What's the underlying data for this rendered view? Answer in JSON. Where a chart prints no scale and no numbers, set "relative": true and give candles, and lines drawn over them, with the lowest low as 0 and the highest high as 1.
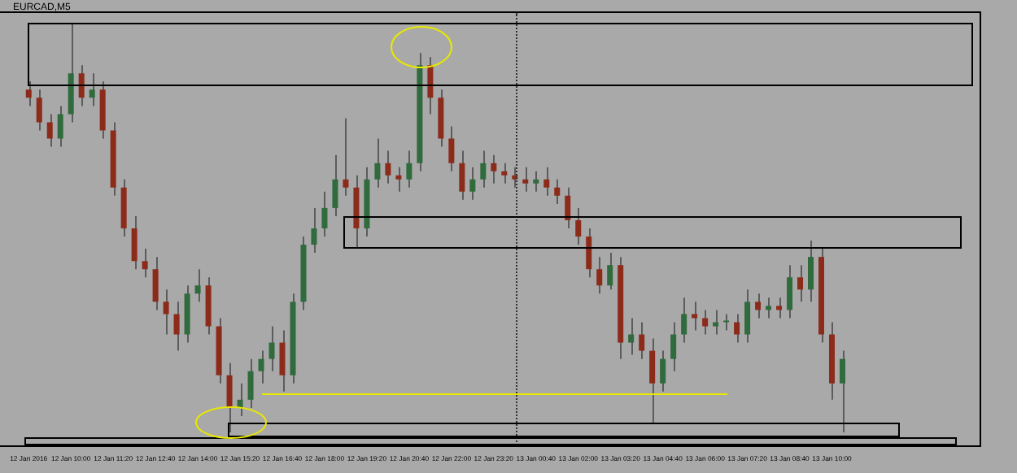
{
  "chart_data": {
    "type": "candlestick",
    "title": "EURCAD,M5",
    "relative": true,
    "tick_labels": "x",
    "categories": [
      "12 Jan 2016",
      null,
      null,
      null,
      "12 Jan 10:00",
      null,
      null,
      null,
      "12 Jan 11:20",
      null,
      null,
      null,
      "12 Jan 12:40",
      null,
      null,
      null,
      "12 Jan 14:00",
      null,
      null,
      null,
      "12 Jan 15:20",
      null,
      null,
      null,
      "12 Jan 16:40",
      null,
      null,
      null,
      "12 Jan 18:00",
      null,
      null,
      null,
      "12 Jan 19:20",
      null,
      null,
      null,
      "12 Jan 20:40",
      null,
      null,
      null,
      "12 Jan 22:00",
      null,
      null,
      null,
      "12 Jan 23:20",
      null,
      null,
      null,
      "13 Jan 00:40",
      null,
      null,
      null,
      "13 Jan 02:00",
      null,
      null,
      null,
      "13 Jan 03:20",
      null,
      null,
      null,
      "13 Jan 04:40",
      null,
      null,
      null,
      "13 Jan 06:00",
      null,
      null,
      null,
      "13 Jan 07:20",
      null,
      null,
      null,
      "13 Jan 08:40",
      null,
      null,
      null,
      "13 Jan 10:00",
      null
    ],
    "ohlc": [
      [
        0.84,
        0.86,
        0.8,
        0.82
      ],
      [
        0.82,
        0.84,
        0.74,
        0.76
      ],
      [
        0.76,
        0.78,
        0.7,
        0.72
      ],
      [
        0.72,
        0.8,
        0.7,
        0.78
      ],
      [
        0.78,
        1.0,
        0.76,
        0.88
      ],
      [
        0.88,
        0.9,
        0.8,
        0.82
      ],
      [
        0.82,
        0.88,
        0.8,
        0.84
      ],
      [
        0.84,
        0.86,
        0.72,
        0.74
      ],
      [
        0.74,
        0.76,
        0.58,
        0.6
      ],
      [
        0.6,
        0.62,
        0.48,
        0.5
      ],
      [
        0.5,
        0.53,
        0.4,
        0.42
      ],
      [
        0.42,
        0.45,
        0.38,
        0.4
      ],
      [
        0.4,
        0.43,
        0.3,
        0.32
      ],
      [
        0.32,
        0.35,
        0.24,
        0.29
      ],
      [
        0.29,
        0.32,
        0.2,
        0.24
      ],
      [
        0.24,
        0.36,
        0.22,
        0.34
      ],
      [
        0.34,
        0.4,
        0.32,
        0.36
      ],
      [
        0.36,
        0.38,
        0.24,
        0.26
      ],
      [
        0.26,
        0.28,
        0.12,
        0.14
      ],
      [
        0.14,
        0.17,
        0,
        0.06
      ],
      [
        0.06,
        0.12,
        0.04,
        0.08
      ],
      [
        0.08,
        0.18,
        0.06,
        0.15
      ],
      [
        0.15,
        0.2,
        0.12,
        0.18
      ],
      [
        0.18,
        0.26,
        0.15,
        0.22
      ],
      [
        0.22,
        0.25,
        0.1,
        0.14
      ],
      [
        0.14,
        0.34,
        0.12,
        0.32
      ],
      [
        0.32,
        0.48,
        0.3,
        0.46
      ],
      [
        0.46,
        0.55,
        0.44,
        0.5
      ],
      [
        0.5,
        0.59,
        0.48,
        0.55
      ],
      [
        0.55,
        0.68,
        0.53,
        0.62
      ],
      [
        0.62,
        0.77,
        0.58,
        0.6
      ],
      [
        0.6,
        0.63,
        0.45,
        0.5
      ],
      [
        0.5,
        0.65,
        0.48,
        0.62
      ],
      [
        0.62,
        0.72,
        0.6,
        0.66
      ],
      [
        0.66,
        0.69,
        0.61,
        0.63
      ],
      [
        0.63,
        0.65,
        0.59,
        0.62
      ],
      [
        0.62,
        0.69,
        0.6,
        0.66
      ],
      [
        0.66,
        0.93,
        0.64,
        0.9
      ],
      [
        0.9,
        0.92,
        0.78,
        0.82
      ],
      [
        0.82,
        0.84,
        0.7,
        0.72
      ],
      [
        0.72,
        0.75,
        0.64,
        0.66
      ],
      [
        0.66,
        0.69,
        0.57,
        0.59
      ],
      [
        0.59,
        0.65,
        0.57,
        0.62
      ],
      [
        0.62,
        0.69,
        0.6,
        0.66
      ],
      [
        0.66,
        0.68,
        0.61,
        0.64
      ],
      [
        0.64,
        0.66,
        0.61,
        0.63
      ],
      [
        0.63,
        0.65,
        0.6,
        0.62
      ],
      [
        0.62,
        0.65,
        0.59,
        0.61
      ],
      [
        0.61,
        0.64,
        0.59,
        0.62
      ],
      [
        0.62,
        0.65,
        0.58,
        0.6
      ],
      [
        0.6,
        0.62,
        0.56,
        0.58
      ],
      [
        0.58,
        0.6,
        0.5,
        0.52
      ],
      [
        0.52,
        0.55,
        0.46,
        0.48
      ],
      [
        0.48,
        0.5,
        0.38,
        0.4
      ],
      [
        0.4,
        0.43,
        0.34,
        0.36
      ],
      [
        0.36,
        0.44,
        0.35,
        0.41
      ],
      [
        0.41,
        0.43,
        0.18,
        0.22
      ],
      [
        0.22,
        0.28,
        0.19,
        0.24
      ],
      [
        0.24,
        0.27,
        0.18,
        0.2
      ],
      [
        0.2,
        0.23,
        0.02,
        0.12
      ],
      [
        0.12,
        0.2,
        0.1,
        0.18
      ],
      [
        0.18,
        0.27,
        0.15,
        0.24
      ],
      [
        0.24,
        0.33,
        0.22,
        0.29
      ],
      [
        0.29,
        0.32,
        0.25,
        0.28
      ],
      [
        0.28,
        0.3,
        0.24,
        0.26
      ],
      [
        0.26,
        0.3,
        0.24,
        0.27
      ],
      [
        0.27,
        0.29,
        0.25,
        0.27
      ],
      [
        0.27,
        0.29,
        0.22,
        0.24
      ],
      [
        0.24,
        0.35,
        0.22,
        0.32
      ],
      [
        0.32,
        0.34,
        0.28,
        0.3
      ],
      [
        0.3,
        0.33,
        0.28,
        0.31
      ],
      [
        0.31,
        0.33,
        0.28,
        0.3
      ],
      [
        0.3,
        0.41,
        0.28,
        0.38
      ],
      [
        0.38,
        0.41,
        0.32,
        0.35
      ],
      [
        0.35,
        0.47,
        0.32,
        0.43
      ],
      [
        0.43,
        0.45,
        0.22,
        0.24
      ],
      [
        0.24,
        0.27,
        0.08,
        0.12
      ],
      [
        0.12,
        0.2,
        0,
        0.18
      ]
    ]
  }
}
